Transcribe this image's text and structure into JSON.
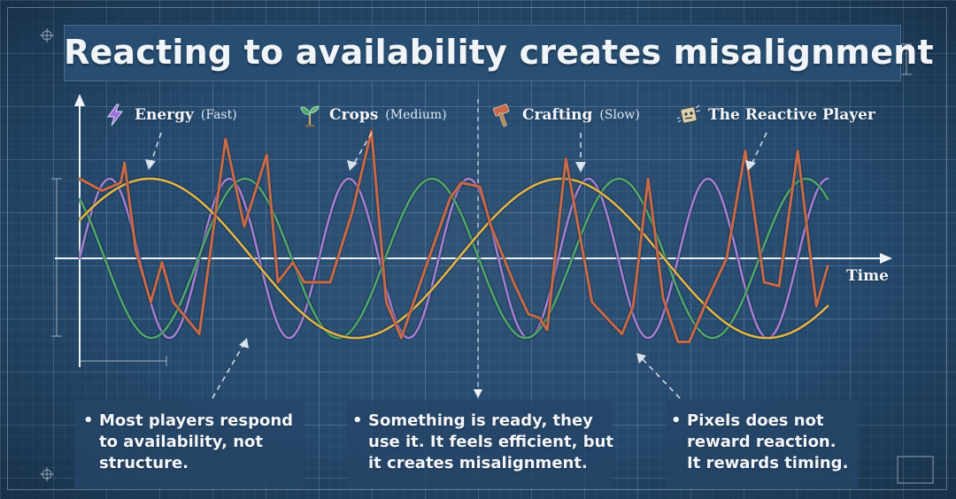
{
  "title": "Reacting to availability creates misalignment",
  "legend": [
    {
      "label": "Energy",
      "speed": "(Fast)",
      "icon": "lightning-icon",
      "color": "#a27fd1"
    },
    {
      "label": "Crops",
      "speed": "(Medium)",
      "icon": "sprout-icon",
      "color": "#4fa56e"
    },
    {
      "label": "Crafting",
      "speed": "(Slow)",
      "icon": "hammer-icon",
      "color": "#e0b54a"
    },
    {
      "label": "The Reactive Player",
      "speed": "",
      "icon": "robot-icon",
      "color": "#c86a48"
    }
  ],
  "x_axis_label": "Time",
  "notes": [
    {
      "lines": [
        "Most players respond",
        "to availability, not",
        "structure."
      ]
    },
    {
      "lines": [
        "Something is ready, they",
        "use it. It feels efficient, but",
        "it creates misalignment."
      ]
    },
    {
      "lines": [
        "Pixels does not",
        "reward reaction.",
        "It rewards timing."
      ]
    }
  ],
  "chart_data": {
    "type": "line",
    "xlabel": "Time",
    "ylabel": "",
    "x_range": [
      0,
      10
    ],
    "y_range": [
      -1,
      1
    ],
    "grid": true,
    "series": [
      {
        "name": "Energy (Fast)",
        "color": "#a27fd1",
        "period": 1.6,
        "phase": 0.0,
        "amplitude": 1.0
      },
      {
        "name": "Crops (Medium)",
        "color": "#4fa56e",
        "period": 2.5,
        "phase": 2.3,
        "amplitude": 1.0
      },
      {
        "name": "Crafting (Slow)",
        "color": "#e0b54a",
        "period": 5.5,
        "phase": 0.5,
        "amplitude": 1.0
      },
      {
        "name": "The Reactive Player",
        "color": "#c86a48",
        "points": [
          [
            0,
            1.0
          ],
          [
            0.3,
            0.85
          ],
          [
            0.55,
            0.95
          ],
          [
            0.6,
            1.2
          ],
          [
            0.75,
            0.1
          ],
          [
            0.95,
            -0.55
          ],
          [
            1.1,
            -0.05
          ],
          [
            1.25,
            -0.55
          ],
          [
            1.6,
            -0.95
          ],
          [
            1.95,
            1.5
          ],
          [
            2.2,
            0.4
          ],
          [
            2.5,
            1.3
          ],
          [
            2.65,
            -0.3
          ],
          [
            2.85,
            -0.05
          ],
          [
            3.0,
            -0.3
          ],
          [
            3.35,
            -0.3
          ],
          [
            3.65,
            0.6
          ],
          [
            3.9,
            1.6
          ],
          [
            4.1,
            -0.55
          ],
          [
            4.3,
            -1.0
          ],
          [
            4.65,
            -0.05
          ],
          [
            4.95,
            0.75
          ],
          [
            5.1,
            0.95
          ],
          [
            5.35,
            0.9
          ],
          [
            5.5,
            0.4
          ],
          [
            5.8,
            -0.3
          ],
          [
            6.0,
            -0.7
          ],
          [
            6.15,
            -0.75
          ],
          [
            6.25,
            -0.9
          ],
          [
            6.5,
            1.25
          ],
          [
            6.85,
            -0.55
          ],
          [
            7.1,
            -0.8
          ],
          [
            7.25,
            -0.95
          ],
          [
            7.4,
            -0.6
          ],
          [
            7.6,
            1.0
          ],
          [
            7.8,
            -0.5
          ],
          [
            8.0,
            -1.05
          ],
          [
            8.15,
            -1.05
          ],
          [
            8.4,
            -0.5
          ],
          [
            8.65,
            0.0
          ],
          [
            8.9,
            1.35
          ],
          [
            9.15,
            -0.3
          ],
          [
            9.35,
            -0.35
          ],
          [
            9.6,
            1.35
          ],
          [
            9.85,
            -0.6
          ],
          [
            10.0,
            -0.1
          ]
        ]
      }
    ]
  }
}
